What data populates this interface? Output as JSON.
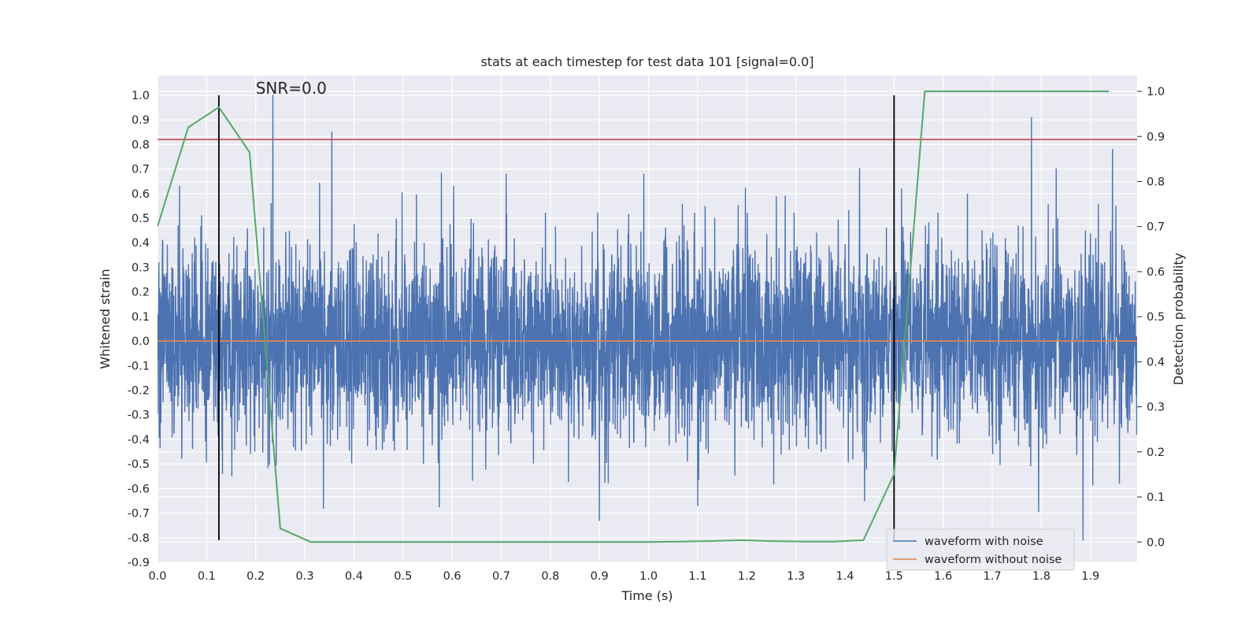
{
  "chart_data": {
    "type": "line",
    "title": "stats at each timestep for test data 101 [signal=0.0]",
    "xlabel": "Time (s)",
    "ylabel": "Whitened strain",
    "ylabel_right": "Detection probability",
    "xlim": [
      0.0,
      1.995
    ],
    "ylim": [
      -0.9,
      1.08
    ],
    "ylim_right": [
      -0.045,
      1.035
    ],
    "x_ticks": [
      0.0,
      0.1,
      0.2,
      0.3,
      0.4,
      0.5,
      0.6,
      0.7,
      0.8,
      0.9,
      1.0,
      1.1,
      1.2,
      1.3,
      1.4,
      1.5,
      1.6,
      1.7,
      1.8,
      1.9
    ],
    "x_tick_labels": [
      "0.0",
      "0.1",
      "0.2",
      "0.3",
      "0.4",
      "0.5",
      "0.6",
      "0.7",
      "0.8",
      "0.9",
      "1.0",
      "1.1",
      "1.2",
      "1.3",
      "1.4",
      "1.5",
      "1.6",
      "1.7",
      "1.8",
      "1.9"
    ],
    "y_ticks": [
      1.0,
      0.9,
      0.8,
      0.7,
      0.6,
      0.5,
      0.4,
      0.3,
      0.2,
      0.1,
      0.0,
      -0.1,
      -0.2,
      -0.3,
      -0.4,
      -0.5,
      -0.6,
      -0.7,
      -0.8,
      -0.9
    ],
    "y_tick_labels": [
      "1.0",
      "0.9",
      "0.8",
      "0.7",
      "0.6",
      "0.5",
      "0.4",
      "0.3",
      "0.2",
      "0.1",
      "0.0",
      "-0.1",
      "-0.2",
      "-0.3",
      "-0.4",
      "-0.5",
      "-0.6",
      "-0.7",
      "-0.8",
      "-0.9"
    ],
    "y_ticks_right": [
      1.0,
      0.9,
      0.8,
      0.7,
      0.6,
      0.5,
      0.4,
      0.3,
      0.2,
      0.1,
      0.0
    ],
    "y_tick_labels_right": [
      "1.0",
      "0.9",
      "0.8",
      "0.7",
      "0.6",
      "0.5",
      "0.4",
      "0.3",
      "0.2",
      "0.1",
      "0.0"
    ],
    "grid": true,
    "background": "#eaeaf2",
    "legend_position": "bottom-right",
    "series": [
      {
        "name": "waveform with noise",
        "color": "#4c72b0",
        "axis": "left",
        "sample_rate_hz": 2048,
        "seed": 101,
        "std": 0.2,
        "peaks": [
          {
            "x": 0.235,
            "y": 1.0
          },
          {
            "x": 0.355,
            "y": 0.85
          },
          {
            "x": 1.78,
            "y": 0.91
          },
          {
            "x": 1.945,
            "y": 0.78
          },
          {
            "x": 0.9,
            "y": -0.73
          },
          {
            "x": 1.1,
            "y": -0.67
          },
          {
            "x": 1.885,
            "y": -0.81
          },
          {
            "x": 0.338,
            "y": -0.68
          },
          {
            "x": 0.045,
            "y": 0.63
          },
          {
            "x": 0.71,
            "y": 0.68
          },
          {
            "x": 0.99,
            "y": 0.68
          },
          {
            "x": 1.44,
            "y": -0.65
          },
          {
            "x": 1.83,
            "y": 0.7
          }
        ]
      },
      {
        "name": "waveform without noise",
        "color": "#dd8452",
        "axis": "left",
        "x": [
          0.0,
          1.995
        ],
        "y": [
          0.0,
          0.0
        ]
      },
      {
        "name": "",
        "color": "#55a868",
        "axis": "right",
        "x": [
          0.0,
          0.0625,
          0.125,
          0.1875,
          0.25,
          0.3125,
          0.375,
          0.4375,
          0.5,
          0.5625,
          0.625,
          0.6875,
          0.75,
          0.8125,
          0.875,
          0.9375,
          1.0,
          1.0625,
          1.125,
          1.1875,
          1.25,
          1.3125,
          1.375,
          1.4375,
          1.5,
          1.5625,
          1.625,
          1.6875,
          1.75,
          1.8125,
          1.875,
          1.9375
        ],
        "y": [
          0.7,
          0.92,
          0.965,
          0.865,
          0.03,
          0.0,
          0.0,
          0.0,
          0.0,
          0.0,
          0.0,
          0.0,
          0.0,
          0.0,
          0.0,
          0.0,
          0.0,
          0.001,
          0.002,
          0.004,
          0.002,
          0.001,
          0.001,
          0.004,
          0.15,
          1.0,
          1.0,
          1.0,
          1.0,
          1.0,
          1.0,
          1.0
        ]
      }
    ],
    "threshold_line": {
      "y": 0.82,
      "color": "#c44e52"
    },
    "vertical_lines": [
      {
        "x": 0.125,
        "y_range": [
          -0.81,
          1.0
        ],
        "color": "#000000"
      },
      {
        "x": 1.5,
        "y_range": [
          -0.81,
          1.0
        ],
        "color": "#000000"
      }
    ],
    "annotation": {
      "text": "SNR=0.0",
      "x": 0.2,
      "y": 1.0
    }
  }
}
